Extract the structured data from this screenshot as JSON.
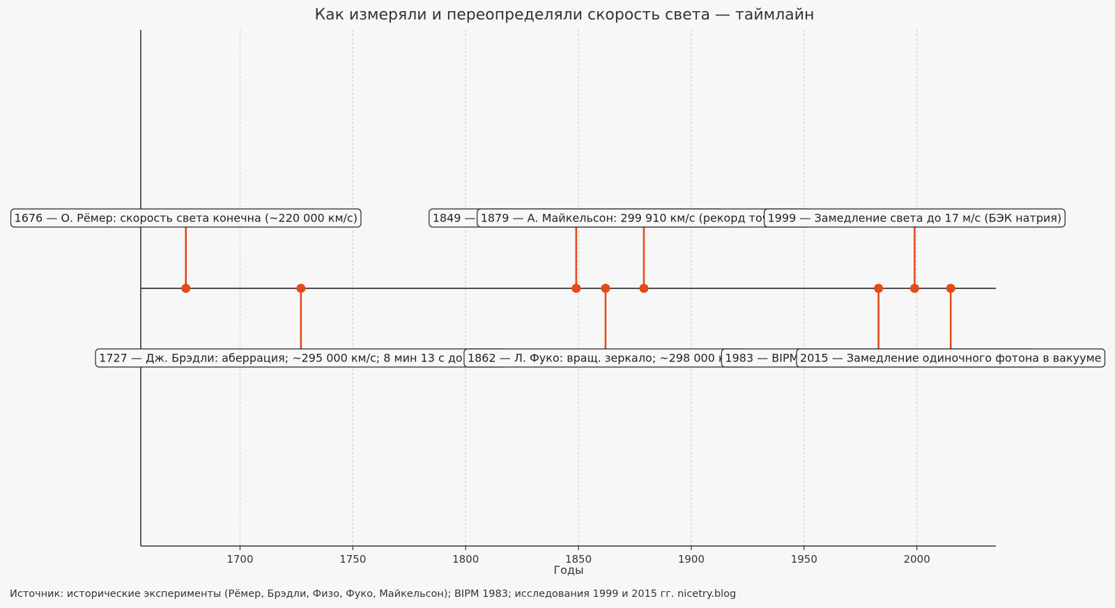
{
  "chart_data": {
    "type": "timeline",
    "title": "Как измеряли и переопределяли скорость света — таймлайн",
    "xlabel": "Годы",
    "xlim": [
      1656,
      2035
    ],
    "xticks": [
      1700,
      1750,
      1800,
      1850,
      1900,
      1950,
      2000
    ],
    "grid": true,
    "accent_color": "#e34a1c",
    "events": [
      {
        "year": 1676,
        "side": "up",
        "label": "1676 — О. Рёмер: скорость света конечна (~220 000 км/с)"
      },
      {
        "year": 1727,
        "side": "down",
        "label": "1727 — Дж. Брэдли: аберрация; ~295 000 км/с; 8 мин 13 с до Земли"
      },
      {
        "year": 1849,
        "side": "up",
        "label": "1849 — И. Физо: зубчатое колесо; ~313 000 км/с"
      },
      {
        "year": 1862,
        "side": "down",
        "label": "1862 — Л. Фуко: вращ. зеркало; ~298 000 км/с"
      },
      {
        "year": 1879,
        "side": "up",
        "label": "1879 — А. Майкельсон: 299 910 км/с (рекорд точности)"
      },
      {
        "year": 1983,
        "side": "down",
        "label": "1983 — BIPM: c = 299 792 458 м/с (по определению)"
      },
      {
        "year": 1999,
        "side": "up",
        "label": "1999 — Замедление света до 17 м/с (БЭК натрия)"
      },
      {
        "year": 2015,
        "side": "down",
        "label": "2015 — Замедление одиночного фотона в вакууме"
      }
    ]
  },
  "footer": {
    "source": "Источник: исторические эксперименты (Рёмер, Брэдли, Физо, Фуко, Майкельсон); BIPM 1983; исследования 1999 и 2015 гг. nicetry.blog"
  }
}
